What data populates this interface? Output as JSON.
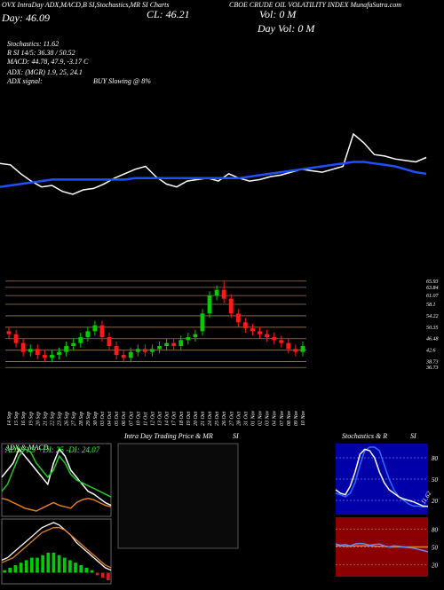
{
  "header": {
    "left_title": "OVX IntraDay ADX,MACD,B SI,Stochastics,MR SI Charts",
    "title": "CBOE CRUDE OIL VOLATILITY INDEX MunafaSutra.com",
    "close": "CL: 46.21",
    "day": "Day: 46.09",
    "vol": "Vol: 0 M",
    "day_vol": "Day Vol: 0 M",
    "stochastics": "Stochastics: 11.62",
    "rsi": "R SI 14/5: 36.38 / 50.52",
    "macd": "MACD: 44.78, 47.9, -3.17 C",
    "adx": "ADX: (MGR) 1.9, 25, 24.1",
    "adx_signal_label": "ADX signal:",
    "adx_signal": "BUY Slowing @ 8%"
  },
  "chart_data": [
    {
      "type": "line",
      "series": [
        {
          "color": "#ffffff",
          "values": [
            52,
            51,
            45,
            40,
            36,
            37,
            33,
            31,
            34,
            35,
            38,
            42,
            45,
            48,
            50,
            43,
            38,
            36,
            40,
            41,
            42,
            40,
            45,
            42,
            40,
            41,
            43,
            44,
            46,
            48,
            47,
            46,
            48,
            50,
            72,
            66,
            58,
            57,
            55,
            54,
            53,
            56
          ]
        },
        {
          "color": "#1f4fff",
          "values": [
            36,
            37,
            38,
            39,
            40,
            41,
            41,
            41,
            41,
            41,
            41,
            41,
            41,
            42,
            42,
            42,
            42,
            42,
            42,
            42,
            42,
            42,
            42,
            42,
            43,
            44,
            45,
            46,
            47,
            48,
            49,
            50,
            51,
            52,
            53,
            53,
            52,
            51,
            50,
            48,
            46,
            45
          ]
        }
      ]
    },
    {
      "type": "candlestick",
      "categories": [
        "14 Sep",
        "15 Sep",
        "16 Sep",
        "19 Sep",
        "20 Sep",
        "21 Sep",
        "22 Sep",
        "23 Sep",
        "26 Sep",
        "27 Sep",
        "28 Sep",
        "29 Sep",
        "30 Sep",
        "03 Oct",
        "04 Oct",
        "05 Oct",
        "06 Oct",
        "07 Oct",
        "10 Oct",
        "11 Oct",
        "12 Oct",
        "13 Oct",
        "14 Oct",
        "17 Oct",
        "18 Oct",
        "19 Oct",
        "20 Oct",
        "21 Oct",
        "24 Oct",
        "25 Oct",
        "26 Oct",
        "27 Oct",
        "28 Oct",
        "31 Oct",
        "01 Nov",
        "02 Nov",
        "03 Nov",
        "04 Nov",
        "07 Nov",
        "08 Nov",
        "09 Nov",
        "10 Nov"
      ],
      "open": [
        49,
        48,
        45,
        42,
        43,
        41,
        40,
        41,
        42,
        44,
        45,
        47,
        49,
        51,
        47,
        44,
        41,
        40,
        42,
        43,
        42,
        43,
        44,
        45,
        44,
        46,
        47,
        49,
        55,
        61,
        63,
        60,
        55,
        52,
        50,
        49,
        48,
        47,
        46,
        45,
        43,
        42
      ],
      "high": [
        50.5,
        49.5,
        46.5,
        44.5,
        44.5,
        42.5,
        42.5,
        43.5,
        45.5,
        46.5,
        48.5,
        50.5,
        52.5,
        52.5,
        48.5,
        45.5,
        42.5,
        43.5,
        44.5,
        44.5,
        44.5,
        45.5,
        46.5,
        46.5,
        47.5,
        48.5,
        49.5,
        56.5,
        62.5,
        64.5,
        66,
        61.5,
        56.5,
        53.5,
        51.5,
        50.5,
        49.5,
        48.5,
        47.5,
        46.5,
        44.5,
        45.5
      ],
      "low": [
        46.5,
        43.5,
        40.5,
        40.5,
        39.5,
        38.5,
        38.5,
        39.5,
        40.5,
        42.5,
        43.5,
        45.5,
        47.5,
        45.5,
        42.5,
        39.5,
        38.5,
        38.5,
        40.5,
        40.5,
        40.5,
        41.5,
        42.5,
        42.5,
        42.5,
        44.5,
        45.5,
        47.5,
        53.5,
        59.5,
        58.5,
        53.5,
        50.5,
        48.5,
        47.5,
        46.5,
        45.5,
        44.5,
        43.5,
        41.5,
        40.5,
        40.5
      ],
      "close": [
        48,
        45,
        42,
        43,
        41,
        40,
        41,
        42,
        44,
        45,
        47,
        49,
        51,
        47,
        44,
        41,
        40,
        42,
        43,
        42,
        43,
        44,
        45,
        44,
        46,
        47,
        48,
        55,
        61,
        63,
        60,
        55,
        52,
        50,
        49,
        48,
        47,
        46,
        45,
        43,
        42,
        44
      ],
      "up_color": "#00cc00",
      "down_color": "#ff1a1a",
      "ylim": [
        35,
        68
      ],
      "yticks": [
        65.93,
        63.84,
        61.07,
        58.1,
        54.22,
        50.35,
        46.48,
        42.6,
        38.73,
        36.73
      ],
      "grid": true,
      "grid_color": "#9a7a50"
    },
    {
      "type": "line",
      "title": "ADX & MACD",
      "annotation": "ADX: 1.9 +DI: 25 -DI: 24.07",
      "series": [
        {
          "color": "#ffffff",
          "values": [
            40,
            45,
            50,
            60,
            55,
            50,
            45,
            40,
            35,
            50,
            60,
            55,
            45,
            40,
            35,
            30,
            28,
            25,
            22,
            20
          ]
        },
        {
          "color": "#22cc22",
          "values": [
            30,
            35,
            45,
            55,
            60,
            58,
            50,
            45,
            40,
            45,
            55,
            50,
            42,
            38,
            36,
            34,
            32,
            30,
            28,
            26
          ]
        },
        {
          "color": "#e08020",
          "values": [
            25,
            24,
            22,
            20,
            18,
            17,
            16,
            18,
            20,
            22,
            20,
            19,
            18,
            22,
            24,
            25,
            24,
            22,
            20,
            19
          ]
        }
      ]
    },
    {
      "type": "bar",
      "color": "#00cc00",
      "values": [
        1,
        2,
        3,
        4,
        5,
        6,
        6,
        7,
        8,
        8,
        7,
        6,
        5,
        4,
        3,
        2,
        1,
        -1,
        -2,
        -3
      ],
      "series": [
        {
          "color": "#ffffff",
          "values": [
            5,
            6,
            8,
            10,
            12,
            14,
            16,
            18,
            19,
            20,
            19,
            17,
            15,
            12,
            10,
            8,
            6,
            4,
            2,
            1
          ]
        },
        {
          "color": "#e08020",
          "values": [
            4,
            5,
            6,
            8,
            10,
            12,
            14,
            16,
            17,
            18,
            18,
            17,
            15,
            13,
            11,
            9,
            7,
            5,
            3,
            2
          ]
        }
      ]
    },
    {
      "type": "line",
      "title": "Intra Day Trading Price & MR",
      "title2": "SI",
      "series": []
    },
    {
      "type": "line",
      "title": "Stochastics & R",
      "title2": "SI",
      "annotation": "11.62",
      "ylim": [
        0,
        100
      ],
      "yticks": [
        80,
        50,
        20
      ],
      "background": "#0000a8",
      "series": [
        {
          "color": "#2f6bff",
          "values": [
            30,
            28,
            25,
            30,
            45,
            70,
            90,
            95,
            95,
            90,
            70,
            50,
            35,
            25,
            20,
            15,
            12,
            12,
            11,
            12
          ]
        },
        {
          "color": "#ffffff",
          "values": [
            35,
            30,
            28,
            40,
            60,
            85,
            92,
            90,
            80,
            60,
            45,
            35,
            30,
            25,
            22,
            20,
            18,
            15,
            12,
            11.62
          ]
        }
      ]
    },
    {
      "type": "line",
      "ylim": [
        0,
        100
      ],
      "yticks": [
        80,
        50,
        20
      ],
      "background": "#8b0000",
      "series": [
        {
          "color": "#e08020",
          "values": [
            52,
            52,
            51,
            51,
            52,
            52,
            52,
            52,
            51,
            51,
            51,
            50,
            50,
            50,
            50,
            50,
            50,
            50,
            50,
            50
          ]
        },
        {
          "color": "#5a8cff",
          "values": [
            55,
            53,
            54,
            52,
            55,
            56,
            55,
            53,
            54,
            55,
            52,
            50,
            52,
            51,
            50,
            49,
            48,
            46,
            44,
            42
          ]
        }
      ]
    }
  ]
}
